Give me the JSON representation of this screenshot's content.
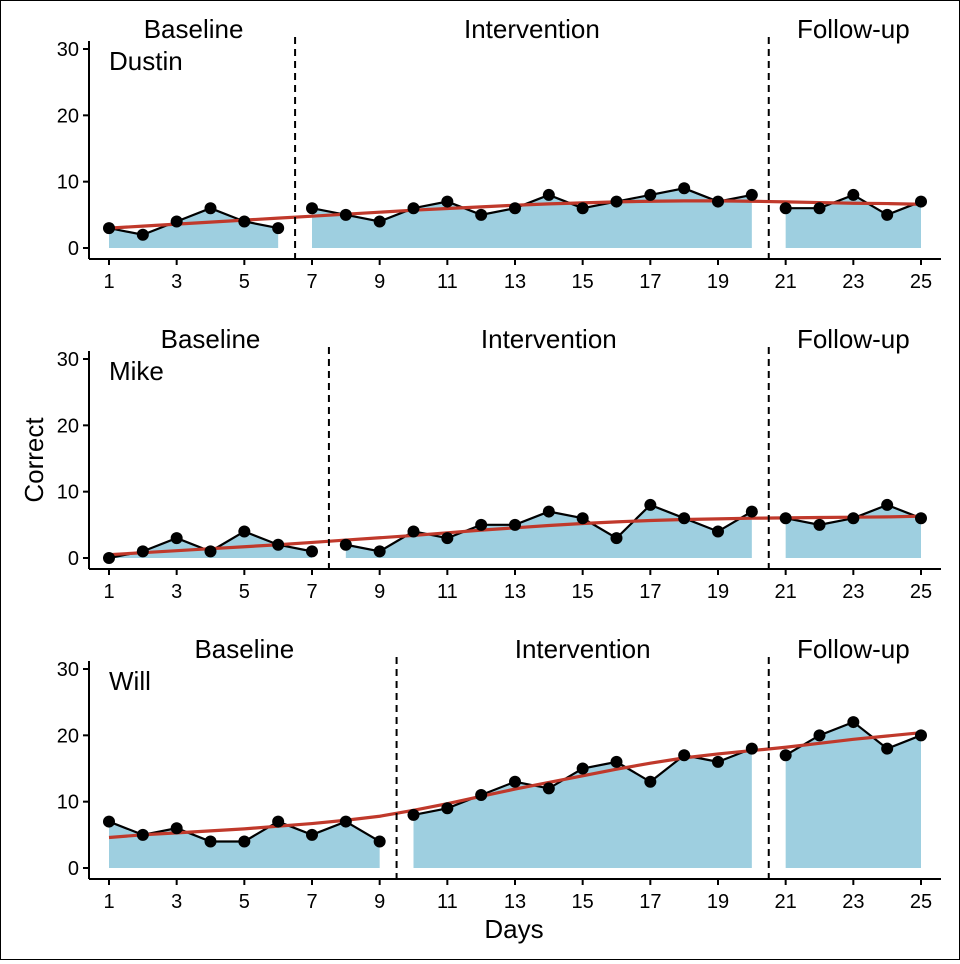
{
  "chart_data": {
    "type": "line",
    "xlabel": "Days",
    "ylabel": "Correct",
    "xlim": [
      1,
      25
    ],
    "ylim": [
      0,
      30
    ],
    "x_ticks": [
      1,
      3,
      5,
      7,
      9,
      11,
      13,
      15,
      17,
      19,
      21,
      23,
      25
    ],
    "y_ticks": [
      0,
      10,
      20,
      30
    ],
    "grid": false,
    "area_fill_color": "#9ECFE0",
    "line_color": "#000000",
    "trend_color": "#C0392B",
    "phase_labels": [
      "Baseline",
      "Intervention",
      "Follow-up"
    ],
    "panels": [
      {
        "name": "Dustin",
        "phase_changes": [
          6.5,
          20.5
        ],
        "x": [
          1,
          2,
          3,
          4,
          5,
          6,
          7,
          8,
          9,
          10,
          11,
          12,
          13,
          14,
          15,
          16,
          17,
          18,
          19,
          20,
          21,
          22,
          23,
          24,
          25
        ],
        "values": [
          3,
          2,
          4,
          6,
          4,
          3,
          6,
          5,
          4,
          6,
          7,
          5,
          6,
          8,
          6,
          7,
          8,
          9,
          7,
          8,
          6,
          6,
          8,
          5,
          7
        ],
        "trend": [
          3.0,
          3.3,
          3.6,
          3.9,
          4.2,
          4.5,
          4.8,
          5.1,
          5.4,
          5.7,
          5.95,
          6.2,
          6.45,
          6.65,
          6.8,
          6.95,
          7.05,
          7.1,
          7.1,
          7.05,
          6.95,
          6.85,
          6.75,
          6.7,
          6.6
        ]
      },
      {
        "name": "Mike",
        "phase_changes": [
          7.5,
          20.5
        ],
        "x": [
          1,
          2,
          3,
          4,
          5,
          6,
          7,
          8,
          9,
          10,
          11,
          12,
          13,
          14,
          15,
          16,
          17,
          18,
          19,
          20,
          21,
          22,
          23,
          24,
          25
        ],
        "values": [
          0,
          1,
          3,
          1,
          4,
          2,
          1,
          2,
          1,
          4,
          3,
          5,
          5,
          7,
          6,
          3,
          8,
          6,
          4,
          7,
          6,
          5,
          6,
          8,
          6
        ],
        "trend": [
          0.5,
          0.8,
          1.1,
          1.4,
          1.7,
          2.0,
          2.35,
          2.7,
          3.05,
          3.4,
          3.8,
          4.2,
          4.55,
          4.9,
          5.2,
          5.45,
          5.65,
          5.8,
          5.9,
          6.0,
          6.05,
          6.1,
          6.15,
          6.2,
          6.3
        ]
      },
      {
        "name": "Will",
        "phase_changes": [
          9.5,
          20.5
        ],
        "x": [
          1,
          2,
          3,
          4,
          5,
          6,
          7,
          8,
          9,
          10,
          11,
          12,
          13,
          14,
          15,
          16,
          17,
          18,
          19,
          20,
          21,
          22,
          23,
          24,
          25
        ],
        "values": [
          7,
          5,
          6,
          4,
          4,
          7,
          5,
          7,
          4,
          8,
          9,
          11,
          13,
          12,
          15,
          16,
          13,
          17,
          16,
          18,
          17,
          20,
          22,
          18,
          20
        ],
        "trend": [
          4.6,
          5.0,
          5.3,
          5.6,
          5.9,
          6.3,
          6.7,
          7.2,
          7.8,
          8.7,
          9.7,
          10.8,
          11.9,
          12.9,
          13.9,
          14.9,
          15.8,
          16.6,
          17.2,
          17.7,
          18.2,
          18.8,
          19.4,
          19.9,
          20.4
        ]
      }
    ]
  }
}
